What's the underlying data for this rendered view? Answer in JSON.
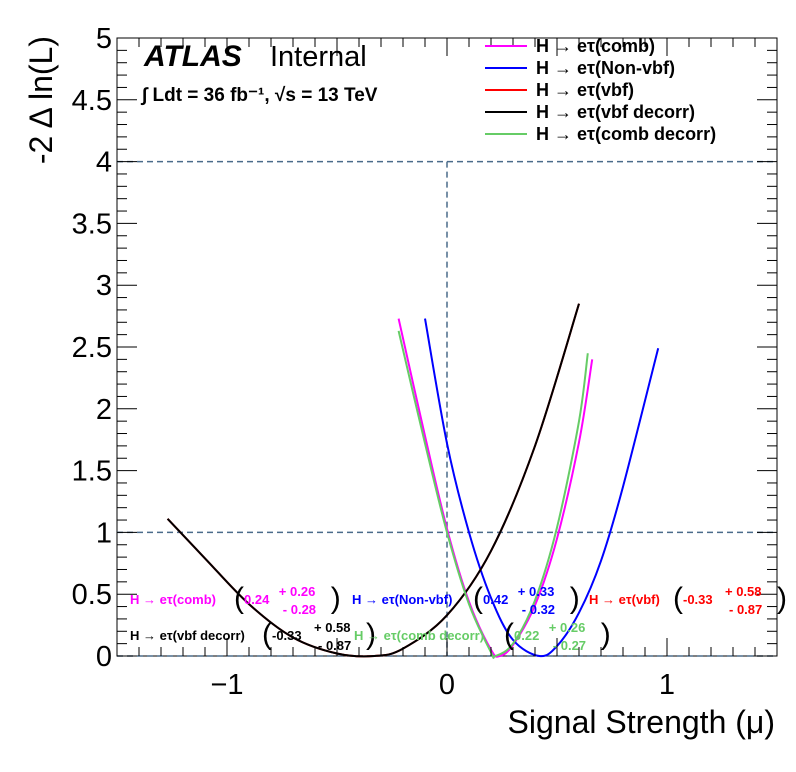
{
  "chart_data": {
    "type": "line",
    "title": "",
    "xlabel": "Signal Strength (μ)",
    "ylabel": "-2 Δ ln(L)",
    "xlim": [
      -1.5,
      1.5
    ],
    "ylim": [
      0,
      5
    ],
    "x_ticks": [
      "−1",
      "0",
      "1"
    ],
    "x_tick_values": [
      -1,
      0,
      1
    ],
    "y_ticks": [
      "0",
      "0.5",
      "1",
      "1.5",
      "2",
      "2.5",
      "3",
      "3.5",
      "4",
      "4.5",
      "5"
    ],
    "y_tick_values": [
      0,
      0.5,
      1,
      1.5,
      2,
      2.5,
      3,
      3.5,
      4,
      4.5,
      5
    ],
    "experiment": "ATLAS",
    "status": "Internal",
    "lumi_text": "∫ Ldt = 36 fb⁻¹,  √s = 13 TeV",
    "legend_position": "top-right",
    "reference_lines": {
      "horizontal": [
        1,
        4
      ],
      "vertical": [
        0
      ]
    },
    "series": [
      {
        "name": "H → eτ(comb)",
        "color": "#ff00ff",
        "x": [
          -0.22,
          -0.1,
          0.0,
          0.1,
          0.2,
          0.24,
          0.3,
          0.4,
          0.5,
          0.6,
          0.66
        ],
        "y": [
          2.73,
          1.78,
          1.03,
          0.44,
          0.05,
          0.0,
          0.09,
          0.41,
          0.95,
          1.73,
          2.4
        ]
      },
      {
        "name": "H → eτ(Non-vbf)",
        "color": "#0000ff",
        "x": [
          -0.1,
          0.0,
          0.1,
          0.2,
          0.3,
          0.42,
          0.5,
          0.6,
          0.7,
          0.8,
          0.96
        ],
        "y": [
          2.73,
          1.72,
          1.0,
          0.47,
          0.13,
          0.0,
          0.08,
          0.35,
          0.77,
          1.37,
          2.49
        ]
      },
      {
        "name": "H → eτ(vbf)",
        "color": "#ff0000",
        "x": [
          -1.27,
          -1.1,
          -0.9,
          -0.7,
          -0.5,
          -0.33,
          -0.2,
          0.0,
          0.2,
          0.4,
          0.6
        ],
        "y": [
          1.11,
          0.79,
          0.42,
          0.15,
          0.02,
          0.0,
          0.06,
          0.33,
          0.85,
          1.7,
          2.85
        ]
      },
      {
        "name": "H → eτ(vbf decorr)",
        "color": "#000000",
        "x": [
          -1.27,
          -1.1,
          -0.9,
          -0.7,
          -0.5,
          -0.33,
          -0.2,
          0.0,
          0.2,
          0.4,
          0.6
        ],
        "y": [
          1.11,
          0.79,
          0.42,
          0.15,
          0.02,
          0.0,
          0.06,
          0.33,
          0.85,
          1.7,
          2.85
        ]
      },
      {
        "name": "H → eτ(comb decorr)",
        "color": "#66cc66",
        "x": [
          -0.22,
          -0.1,
          0.0,
          0.1,
          0.2,
          0.22,
          0.3,
          0.4,
          0.5,
          0.6,
          0.64
        ],
        "y": [
          2.63,
          1.72,
          1.0,
          0.42,
          0.03,
          0.0,
          0.1,
          0.45,
          1.04,
          1.9,
          2.45
        ]
      }
    ],
    "annotations": [
      {
        "label": "H → eτ(comb)",
        "color": "#ff00ff",
        "central": "0.24",
        "up": "+ 0.26",
        "down": "- 0.28"
      },
      {
        "label": "H → eτ(Non-vbf)",
        "color": "#0000ff",
        "central": "0.42",
        "up": "+ 0.33",
        "down": "- 0.32"
      },
      {
        "label": "H → eτ(vbf)",
        "color": "#ff0000",
        "central": "-0.33",
        "up": "+ 0.58",
        "down": "- 0.87"
      },
      {
        "label": "H → eτ(vbf decorr)",
        "color": "#000000",
        "central": "-0.33",
        "up": "+ 0.58",
        "down": "- 0.87"
      },
      {
        "label": "H → eτ(comb decorr)",
        "color": "#66cc66",
        "central": "0.22",
        "up": "+ 0.26",
        "down": "- 0.27"
      }
    ]
  }
}
